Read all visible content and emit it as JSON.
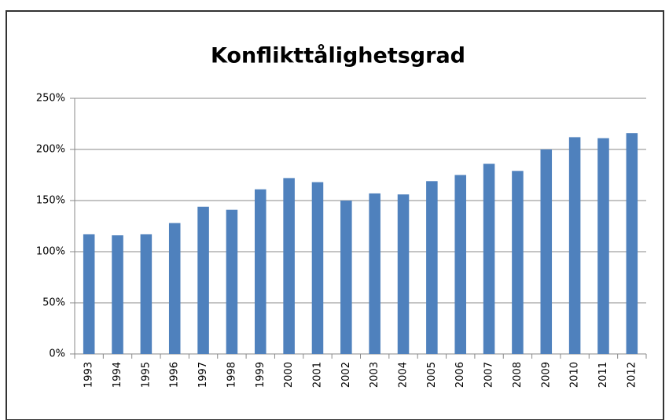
{
  "chart_data": {
    "type": "bar",
    "title": "Konflikttålighetsgrad",
    "categories": [
      "1993",
      "1994",
      "1995",
      "1996",
      "1997",
      "1998",
      "1999",
      "2000",
      "2001",
      "2002",
      "2003",
      "2004",
      "2005",
      "2006",
      "2007",
      "2008",
      "2009",
      "2010",
      "2011",
      "2012"
    ],
    "values": [
      117,
      116,
      117,
      128,
      144,
      141,
      161,
      172,
      168,
      150,
      157,
      156,
      169,
      175,
      186,
      179,
      200,
      212,
      211,
      216
    ],
    "color": "#4f81bd",
    "ylim": [
      0,
      250
    ],
    "yticks": [
      {
        "value": 0,
        "label": "0%"
      },
      {
        "value": 50,
        "label": "50%"
      },
      {
        "value": 100,
        "label": "100%"
      },
      {
        "value": 150,
        "label": "150%"
      },
      {
        "value": 200,
        "label": "200%"
      },
      {
        "value": 250,
        "label": "250%"
      }
    ],
    "grid": true
  }
}
